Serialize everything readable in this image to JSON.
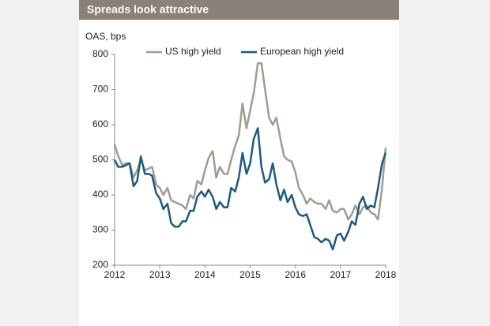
{
  "header": {
    "title": "Spreads look attractive"
  },
  "chart_data": {
    "type": "line",
    "ylabel": "OAS, bps",
    "x": [
      2012,
      2012.08,
      2012.17,
      2012.25,
      2012.33,
      2012.42,
      2012.5,
      2012.58,
      2012.67,
      2012.75,
      2012.83,
      2012.92,
      2013,
      2013.08,
      2013.17,
      2013.25,
      2013.33,
      2013.42,
      2013.5,
      2013.58,
      2013.67,
      2013.75,
      2013.83,
      2013.92,
      2014,
      2014.08,
      2014.17,
      2014.25,
      2014.33,
      2014.42,
      2014.5,
      2014.58,
      2014.67,
      2014.75,
      2014.83,
      2014.92,
      2015,
      2015.08,
      2015.17,
      2015.25,
      2015.33,
      2015.42,
      2015.5,
      2015.58,
      2015.67,
      2015.75,
      2015.83,
      2015.92,
      2016,
      2016.08,
      2016.17,
      2016.25,
      2016.33,
      2016.42,
      2016.5,
      2016.58,
      2016.67,
      2016.75,
      2016.83,
      2016.92,
      2017,
      2017.08,
      2017.17,
      2017.25,
      2017.33,
      2017.42,
      2017.5,
      2017.58,
      2017.67,
      2017.75,
      2017.83,
      2017.92,
      2018
    ],
    "series": [
      {
        "name": "US high yield",
        "color": "#a19b94",
        "values": [
          545,
          510,
          485,
          490,
          490,
          450,
          470,
          500,
          470,
          475,
          480,
          430,
          420,
          400,
          420,
          385,
          380,
          375,
          370,
          360,
          400,
          390,
          440,
          430,
          470,
          505,
          525,
          450,
          480,
          460,
          460,
          500,
          540,
          570,
          660,
          590,
          640,
          690,
          775,
          775,
          700,
          620,
          600,
          620,
          560,
          510,
          500,
          495,
          465,
          420,
          400,
          375,
          390,
          380,
          375,
          375,
          360,
          385,
          355,
          350,
          360,
          360,
          330,
          345,
          370,
          345,
          365,
          370,
          350,
          345,
          330,
          420,
          535
        ]
      },
      {
        "name": "European high yield",
        "color": "#1f5a80",
        "values": [
          500,
          480,
          480,
          485,
          490,
          425,
          440,
          510,
          460,
          460,
          455,
          405,
          390,
          360,
          375,
          320,
          310,
          310,
          325,
          325,
          355,
          355,
          395,
          410,
          395,
          415,
          395,
          360,
          380,
          365,
          365,
          420,
          410,
          450,
          520,
          460,
          490,
          560,
          590,
          480,
          435,
          445,
          490,
          430,
          385,
          415,
          380,
          400,
          365,
          345,
          340,
          345,
          315,
          280,
          275,
          265,
          275,
          270,
          245,
          285,
          290,
          270,
          295,
          325,
          315,
          375,
          395,
          360,
          370,
          365,
          420,
          490,
          520
        ]
      }
    ],
    "xlim": [
      2012,
      2018
    ],
    "xticks": [
      2012,
      2013,
      2014,
      2015,
      2016,
      2017,
      2018
    ],
    "ylim": [
      200,
      800
    ],
    "yticks": [
      200,
      300,
      400,
      500,
      600,
      700,
      800
    ],
    "legend": "top"
  }
}
